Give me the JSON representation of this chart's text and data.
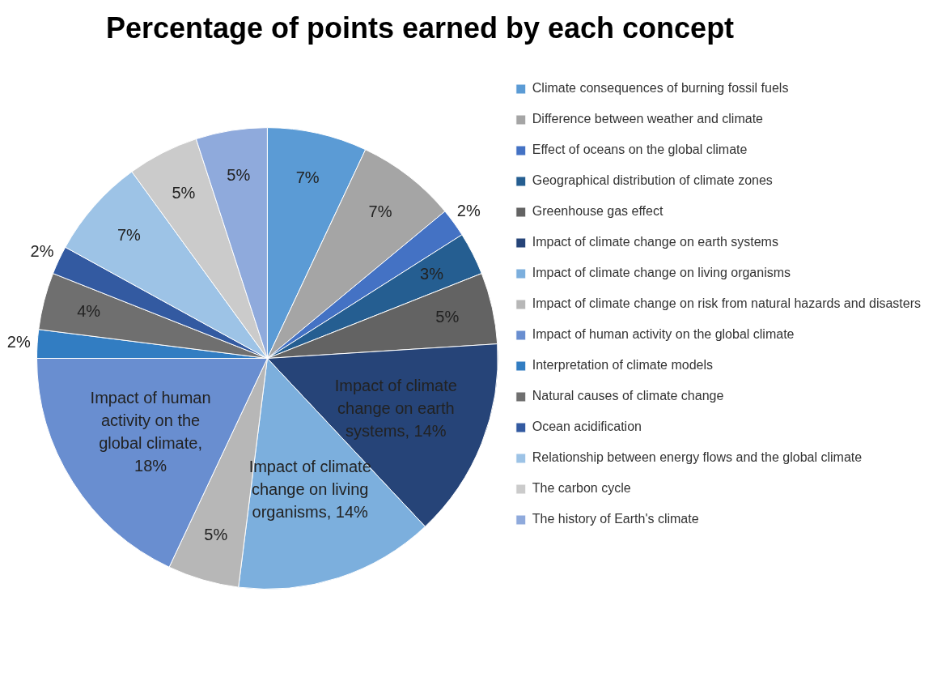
{
  "chart_data": {
    "type": "pie",
    "title": "Percentage of points earned by each concept",
    "categories": [
      "Climate consequences of burning fossil fuels",
      "Difference between weather and climate",
      "Effect of oceans on the global climate",
      "Geographical distribution of climate zones",
      "Greenhouse gas effect",
      "Impact of climate change on earth systems",
      "Impact of climate change on living organisms",
      "Impact of climate change on risk from natural hazards and disasters",
      "Impact of human activity on the global climate",
      "Interpretation of climate models",
      "Natural causes of climate change",
      "Ocean acidification",
      "Relationship between energy flows and the global climate",
      "The carbon cycle",
      "The history of Earth's climate"
    ],
    "values": [
      7,
      7,
      2,
      3,
      5,
      14,
      14,
      5,
      18,
      2,
      4,
      2,
      7,
      5,
      5
    ],
    "colors": [
      "#5b9bd5",
      "#a5a5a5",
      "#4472c4",
      "#255e91",
      "#636363",
      "#264478",
      "#7cafdd",
      "#b7b7b7",
      "#698ed0",
      "#327dc2",
      "#6f6f6f",
      "#335aa1",
      "#9dc3e6",
      "#cbcbcb",
      "#8faadc"
    ],
    "value_labels": [
      "7%",
      "7%",
      "2%",
      "3%",
      "5%",
      "Impact of climate change on earth systems, 14%",
      "Impact of climate change on living organisms, 14%",
      "5%",
      "Impact of human activity on the global climate, 18%",
      "2%",
      "4%",
      "2%",
      "7%",
      "5%",
      "5%"
    ],
    "legend": "right"
  }
}
